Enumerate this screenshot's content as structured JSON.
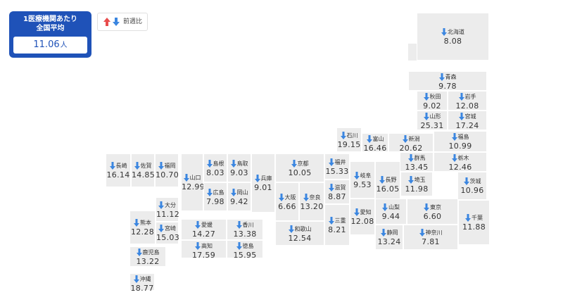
{
  "average": {
    "title_line1": "1医療機関あたり",
    "title_line2": "全国平均",
    "value": "11.06",
    "unit": "人"
  },
  "legend": {
    "label": "前週比",
    "up_color": "#e84c4c",
    "down_color": "#3b86e0"
  },
  "prefectures": [
    {
      "id": "hokkaido",
      "name": "北海道",
      "value": "8.08",
      "trend": "down"
    },
    {
      "id": "aomori",
      "name": "青森",
      "value": "9.78",
      "trend": "down"
    },
    {
      "id": "akita",
      "name": "秋田",
      "value": "9.02",
      "trend": "down"
    },
    {
      "id": "iwate",
      "name": "岩手",
      "value": "12.08",
      "trend": "down"
    },
    {
      "id": "yamagata",
      "name": "山形",
      "value": "25.31",
      "trend": "down"
    },
    {
      "id": "miyagi",
      "name": "宮城",
      "value": "17.24",
      "trend": "down"
    },
    {
      "id": "ishikawa",
      "name": "石川",
      "value": "19.15",
      "trend": "down"
    },
    {
      "id": "toyama",
      "name": "富山",
      "value": "16.46",
      "trend": "down"
    },
    {
      "id": "niigata",
      "name": "新潟",
      "value": "20.62",
      "trend": "down"
    },
    {
      "id": "fukushima",
      "name": "福島",
      "value": "10.99",
      "trend": "down"
    },
    {
      "id": "gunma",
      "name": "群馬",
      "value": "13.45",
      "trend": "down"
    },
    {
      "id": "tochigi",
      "name": "栃木",
      "value": "12.46",
      "trend": "down"
    },
    {
      "id": "nagasaki",
      "name": "長崎",
      "value": "16.14",
      "trend": "down"
    },
    {
      "id": "saga",
      "name": "佐賀",
      "value": "14.85",
      "trend": "down"
    },
    {
      "id": "fukuoka",
      "name": "福岡",
      "value": "10.70",
      "trend": "down"
    },
    {
      "id": "yamaguchi",
      "name": "山口",
      "value": "12.99",
      "trend": "down"
    },
    {
      "id": "shimane",
      "name": "島根",
      "value": "8.03",
      "trend": "down"
    },
    {
      "id": "tottori",
      "name": "鳥取",
      "value": "9.03",
      "trend": "down"
    },
    {
      "id": "hyogo",
      "name": "兵庫",
      "value": "9.01",
      "trend": "down"
    },
    {
      "id": "kyoto",
      "name": "京都",
      "value": "10.05",
      "trend": "down"
    },
    {
      "id": "fukui",
      "name": "福井",
      "value": "15.33",
      "trend": "down"
    },
    {
      "id": "gifu",
      "name": "岐阜",
      "value": "9.53",
      "trend": "down"
    },
    {
      "id": "nagano",
      "name": "長野",
      "value": "16.05",
      "trend": "down"
    },
    {
      "id": "saitama",
      "name": "埼玉",
      "value": "11.98",
      "trend": "down"
    },
    {
      "id": "ibaraki",
      "name": "茨城",
      "value": "10.96",
      "trend": "down"
    },
    {
      "id": "hiroshima",
      "name": "広島",
      "value": "7.98",
      "trend": "down"
    },
    {
      "id": "okayama",
      "name": "岡山",
      "value": "9.42",
      "trend": "down"
    },
    {
      "id": "shiga",
      "name": "滋賀",
      "value": "8.87",
      "trend": "down"
    },
    {
      "id": "osaka",
      "name": "大阪",
      "value": "6.66",
      "trend": "down"
    },
    {
      "id": "nara",
      "name": "奈良",
      "value": "13.20",
      "trend": "down"
    },
    {
      "id": "oita",
      "name": "大分",
      "value": "11.12",
      "trend": "down"
    },
    {
      "id": "kumamoto",
      "name": "熊本",
      "value": "12.28",
      "trend": "down"
    },
    {
      "id": "miyazaki",
      "name": "宮崎",
      "value": "15.03",
      "trend": "down"
    },
    {
      "id": "ehime",
      "name": "愛媛",
      "value": "14.27",
      "trend": "down"
    },
    {
      "id": "kagawa",
      "name": "香川",
      "value": "13.38",
      "trend": "down"
    },
    {
      "id": "kochi",
      "name": "高知",
      "value": "17.59",
      "trend": "down"
    },
    {
      "id": "tokushima",
      "name": "徳島",
      "value": "15.95",
      "trend": "down"
    },
    {
      "id": "wakayama",
      "name": "和歌山",
      "value": "12.54",
      "trend": "down"
    },
    {
      "id": "mie",
      "name": "三重",
      "value": "8.21",
      "trend": "down"
    },
    {
      "id": "aichi",
      "name": "愛知",
      "value": "12.08",
      "trend": "down"
    },
    {
      "id": "yamanashi",
      "name": "山梨",
      "value": "9.44",
      "trend": "down"
    },
    {
      "id": "tokyo",
      "name": "東京",
      "value": "6.60",
      "trend": "down"
    },
    {
      "id": "chiba",
      "name": "千葉",
      "value": "11.88",
      "trend": "down"
    },
    {
      "id": "shizuoka",
      "name": "静岡",
      "value": "13.24",
      "trend": "down"
    },
    {
      "id": "kanagawa",
      "name": "神奈川",
      "value": "7.81",
      "trend": "down"
    },
    {
      "id": "kagoshima",
      "name": "鹿児島",
      "value": "13.22",
      "trend": "down"
    },
    {
      "id": "okinawa",
      "name": "沖縄",
      "value": "18.77",
      "trend": "down"
    }
  ]
}
